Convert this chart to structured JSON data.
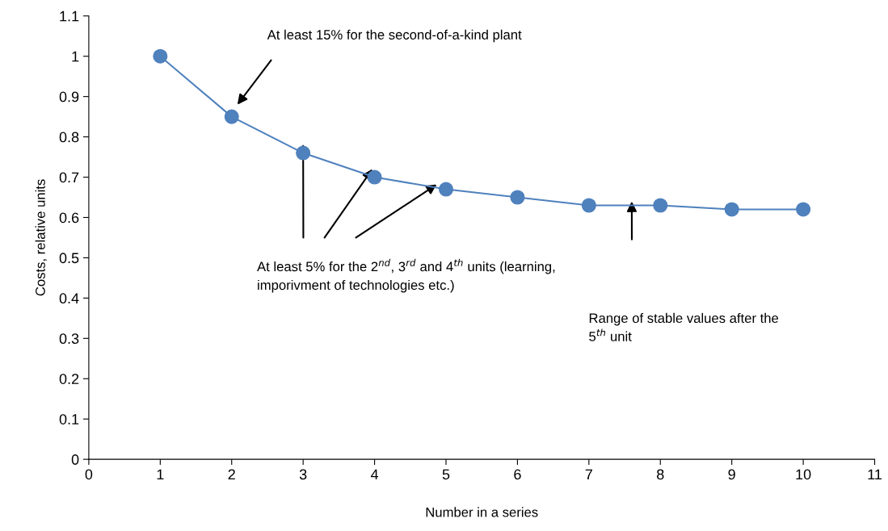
{
  "chart_data": {
    "type": "line",
    "xlabel": "Number in a series",
    "ylabel": "Costs, relative units",
    "x": [
      1,
      2,
      3,
      4,
      5,
      6,
      7,
      8,
      9,
      10
    ],
    "series": [
      {
        "color": "#4f81bd",
        "values": [
          1.0,
          0.85,
          0.76,
          0.7,
          0.67,
          0.65,
          0.63,
          0.63,
          0.62,
          0.62
        ]
      }
    ],
    "marker": "circle",
    "line_style": "solid",
    "grid": false,
    "legend": false,
    "xlim": [
      0,
      11
    ],
    "xticks": [
      0,
      1,
      2,
      3,
      4,
      5,
      6,
      7,
      8,
      9,
      10,
      11
    ],
    "ylim": [
      0,
      1.1
    ],
    "yticks": [
      0,
      0.1,
      0.2,
      0.3,
      0.4,
      0.5,
      0.6,
      0.7,
      0.8,
      0.9,
      1,
      1.1
    ],
    "annotations": [
      "At least 15% for the second-of-a-kind plant",
      "At least 5% for the 2$^{nd}$, 3$^{rd}$ and 4$^{th}$ units (learning,\nimporivment of technologies etc.)",
      "Range of stable values after the\n5$^{th}$ unit"
    ]
  }
}
